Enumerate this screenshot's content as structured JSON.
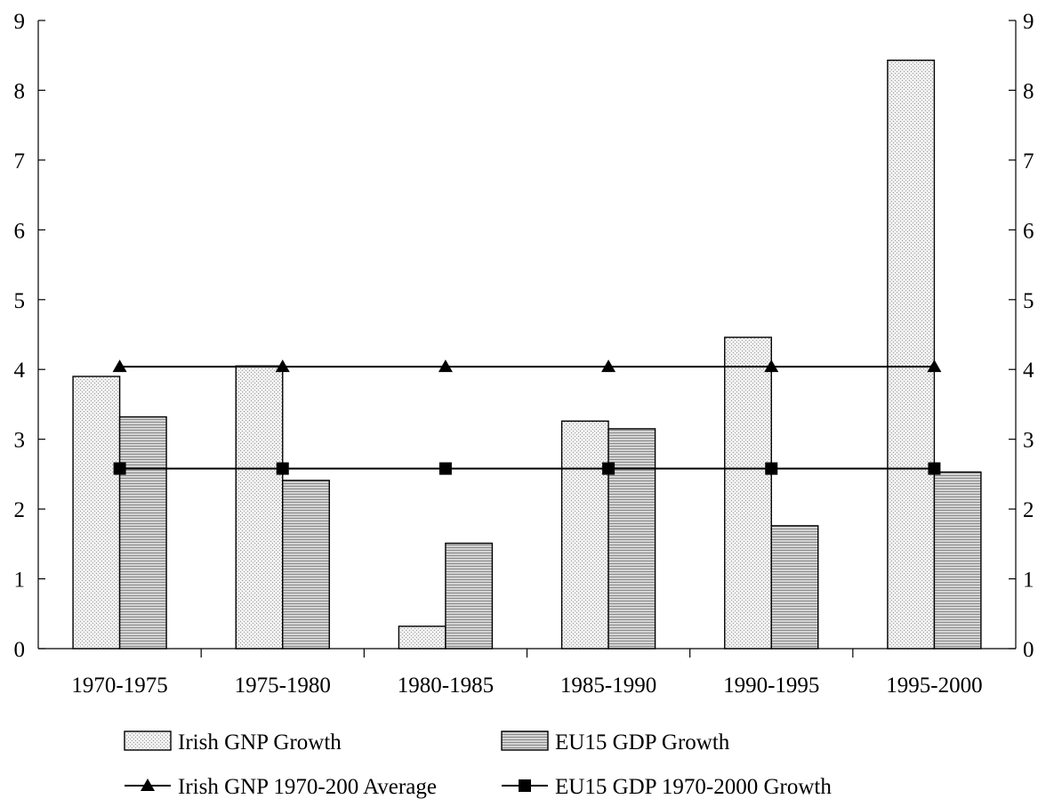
{
  "chart_data": {
    "type": "bar",
    "categories": [
      "1970-1975",
      "1975-1980",
      "1980-1985",
      "1985-1990",
      "1990-1995",
      "1995-2000"
    ],
    "series": [
      {
        "name": "Irish GNP Growth",
        "kind": "bar",
        "values": [
          3.9,
          4.05,
          0.32,
          3.26,
          4.46,
          8.43
        ]
      },
      {
        "name": "EU15 GDP Growth",
        "kind": "bar",
        "values": [
          3.32,
          2.41,
          1.51,
          3.15,
          1.76,
          2.53
        ]
      },
      {
        "name": "Irish GNP 1970-200 Average",
        "kind": "line",
        "marker": "triangle",
        "values": [
          4.04,
          4.04,
          4.04,
          4.04,
          4.04,
          4.04
        ]
      },
      {
        "name": "EU15 GDP 1970-2000 Growth",
        "kind": "line",
        "marker": "square",
        "values": [
          2.58,
          2.58,
          2.58,
          2.58,
          2.58,
          2.58
        ]
      }
    ],
    "yticks": [
      0,
      1,
      2,
      3,
      4,
      5,
      6,
      7,
      8,
      9
    ],
    "ylim": [
      0,
      9
    ],
    "secondary_axis": true,
    "grid": false,
    "legend_position": "bottom",
    "colors": {
      "irish_bar": "#ececec",
      "eu_bar": "#c4c4c4",
      "line": "#000000"
    }
  }
}
